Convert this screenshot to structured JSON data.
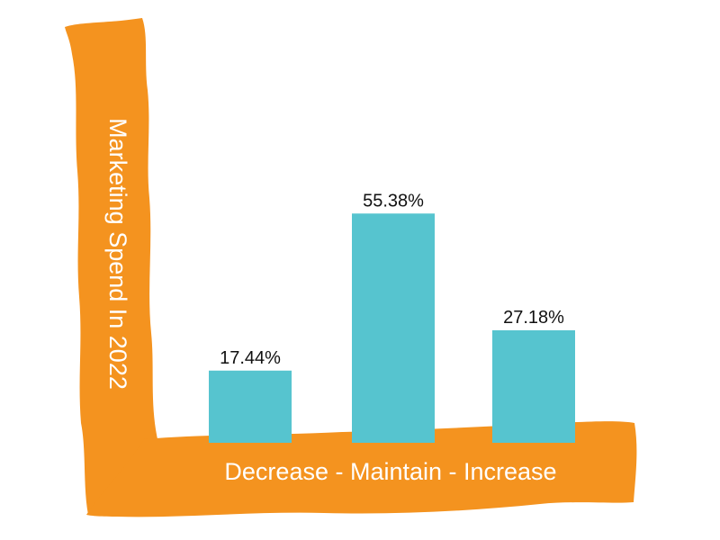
{
  "chart_data": {
    "type": "bar",
    "categories": [
      "Decrease",
      "Maintain",
      "Increase"
    ],
    "values": [
      17.44,
      55.38,
      27.18
    ],
    "value_labels": [
      "17.44%",
      "55.38%",
      "27.18%"
    ],
    "title": "",
    "xlabel": "Decrease - Maintain - Increase",
    "ylabel": "Marketing Spend In 2022",
    "ylim": [
      0,
      100
    ],
    "grid": false,
    "legend": "none",
    "colors": {
      "bar": "#56C4CF",
      "axis_brush": "#F4931F",
      "axis_text": "#FFFFFF",
      "value_text": "#111111"
    }
  }
}
